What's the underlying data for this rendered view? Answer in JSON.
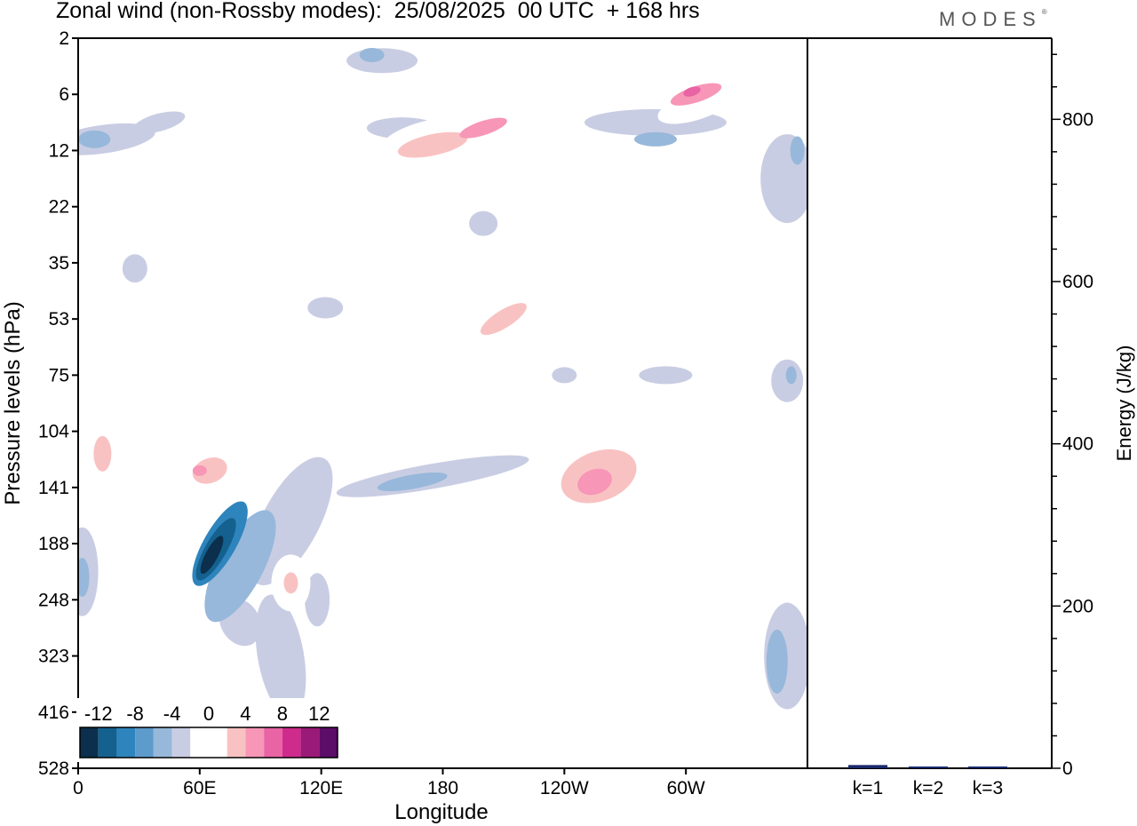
{
  "header": {
    "title": "Zonal wind (non-Rossby modes):  25/08/2025  00 UTC  + 168 hrs",
    "brand": "MODES",
    "brand_mark": "®"
  },
  "chart_data": [
    {
      "type": "heatmap",
      "title": "Zonal wind (non-Rossby modes):  25/08/2025  00 UTC  + 168 hrs",
      "xlabel": "Longitude",
      "ylabel": "Pressure levels (hPa)",
      "x_ticks": [
        "0",
        "60E",
        "120E",
        "180",
        "120W",
        "60W"
      ],
      "x_tick_values": [
        0,
        60,
        120,
        180,
        240,
        300
      ],
      "xlim": [
        0,
        360
      ],
      "y_ticks": [
        "2",
        "6",
        "12",
        "22",
        "35",
        "53",
        "75",
        "104",
        "141",
        "188",
        "248",
        "323",
        "416",
        "528"
      ],
      "y_scale": "model levels (pressure increasing downward)",
      "grid": false,
      "colorbar": {
        "labels": [
          "-12",
          "-8",
          "-4",
          "0",
          "4",
          "8",
          "12"
        ],
        "levels": [
          -14,
          -12,
          -10,
          -8,
          -6,
          -4,
          -2,
          2,
          4,
          6,
          8,
          10,
          12,
          14
        ],
        "colors": [
          "#0b2f4c",
          "#14618f",
          "#2e84bc",
          "#5c9bcb",
          "#97b8da",
          "#c9cde3",
          "#ffffff",
          "#ffffff",
          "#f9c2c2",
          "#f796b7",
          "#e864a4",
          "#cf2b8c",
          "#9a1a78",
          "#5c0d68"
        ],
        "placement": "bottom-left"
      },
      "features": [
        {
          "name": "strong easterly jet",
          "sign": "negative",
          "min_value": -14,
          "longitude_range": [
            20,
            100
          ],
          "level_range": [
            "104",
            "323"
          ]
        },
        {
          "name": "positive band",
          "sign": "positive",
          "max_value": 6,
          "longitude_range": [
            125,
            200
          ],
          "level_range": [
            "6",
            "22"
          ]
        },
        {
          "name": "positive band",
          "sign": "positive",
          "max_value": 8,
          "longitude_range": [
            280,
            330
          ],
          "level_range": [
            "6",
            "12"
          ]
        },
        {
          "name": "positive region",
          "sign": "positive",
          "max_value": 6,
          "longitude_range": [
            235,
            285
          ],
          "level_range": [
            "104",
            "188"
          ]
        },
        {
          "name": "negative region",
          "sign": "negative",
          "min_value": -6,
          "longitude_range": [
            330,
            360
          ],
          "level_range": [
            "248",
            "416"
          ]
        }
      ]
    },
    {
      "type": "bar",
      "categories": [
        "k=1",
        "k=2",
        "k=3"
      ],
      "values": [
        4,
        2,
        1
      ],
      "ylabel": "Energy (J/kg)",
      "ylim": [
        0,
        900
      ],
      "y_ticks": [
        0,
        200,
        400,
        600,
        800
      ],
      "bar_color": "#1a2a6b"
    }
  ]
}
